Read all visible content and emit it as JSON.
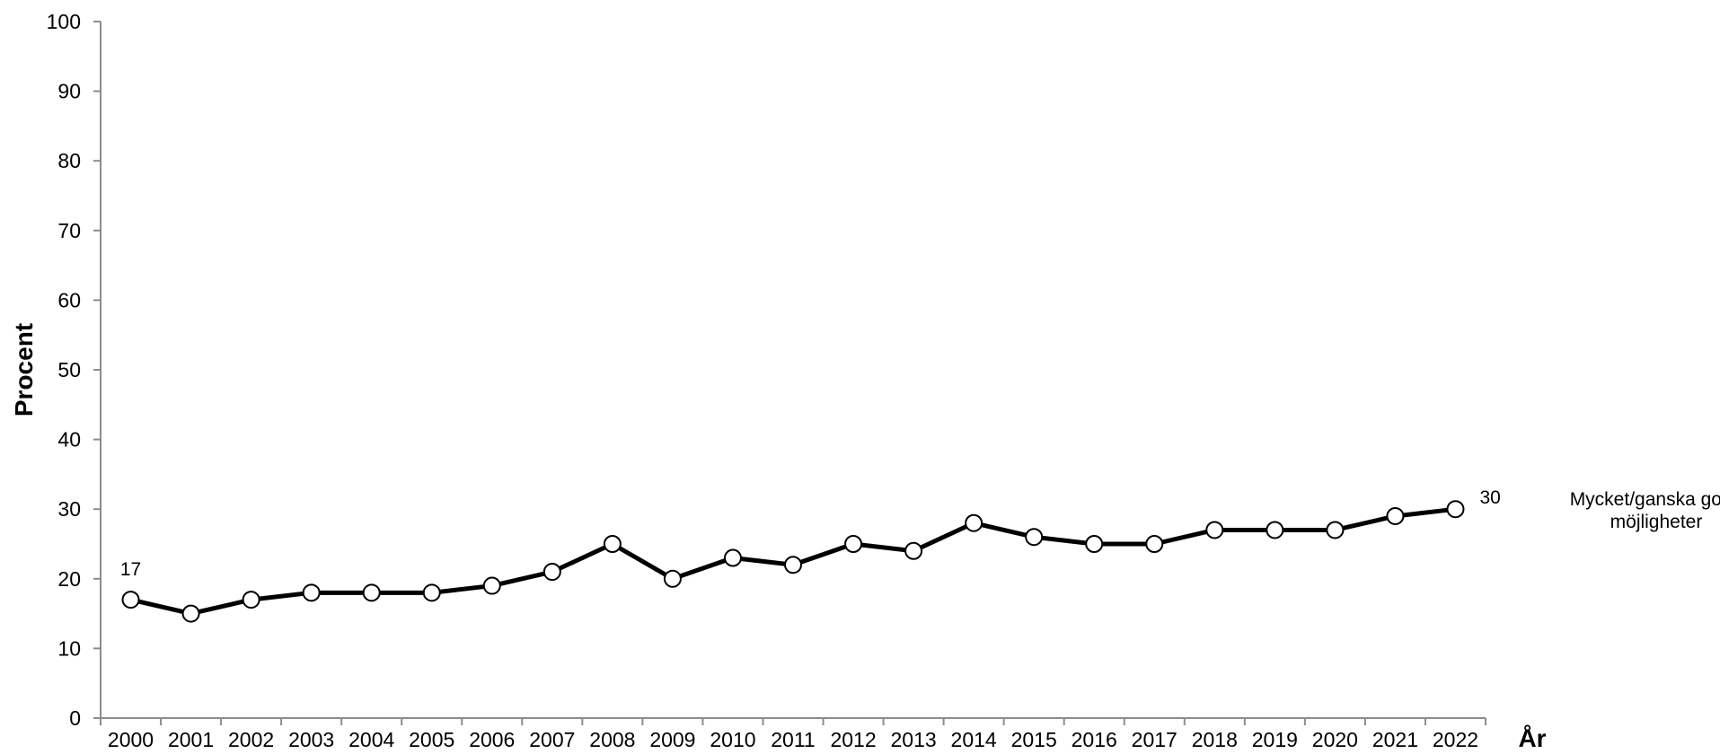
{
  "chart_data": {
    "type": "line",
    "title": "",
    "xlabel": "År",
    "ylabel": "Procent",
    "ylim": [
      0,
      100
    ],
    "yticks": [
      0,
      10,
      20,
      30,
      40,
      50,
      60,
      70,
      80,
      90,
      100
    ],
    "categories": [
      "2000",
      "2001",
      "2002",
      "2003",
      "2004",
      "2005",
      "2006",
      "2007",
      "2008",
      "2009",
      "2010",
      "2011",
      "2012",
      "2013",
      "2014",
      "2015",
      "2016",
      "2017",
      "2018",
      "2019",
      "2020",
      "2021",
      "2022"
    ],
    "series": [
      {
        "name": "Mycket/ganska goda möjligheter",
        "name_lines": [
          "Mycket/ganska goda",
          "möjligheter"
        ],
        "values": [
          17,
          15,
          17,
          18,
          18,
          18,
          19,
          21,
          25,
          20,
          23,
          22,
          25,
          24,
          28,
          26,
          25,
          25,
          27,
          27,
          27,
          29,
          30
        ],
        "color": "#000000",
        "marker": "open-circle"
      }
    ],
    "data_labels": [
      {
        "index": 0,
        "text": "17"
      },
      {
        "index": 22,
        "text": "30"
      }
    ],
    "grid": false,
    "legend": "inline-right"
  }
}
